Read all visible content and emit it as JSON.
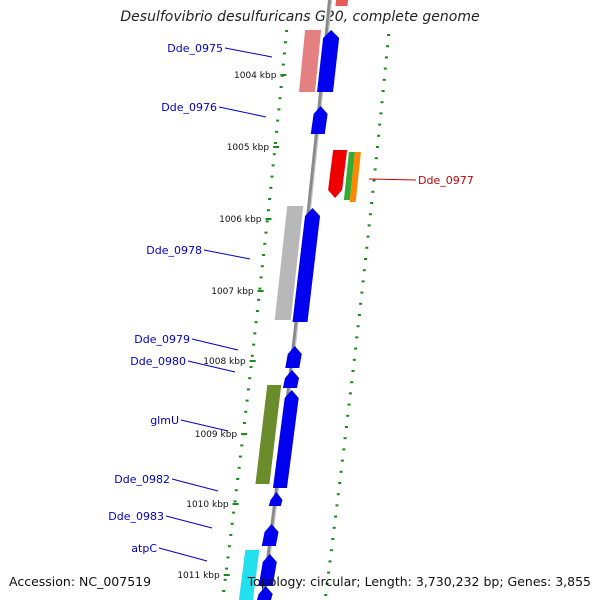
{
  "title": "Desulfovibrio desulfuricans G20, complete genome",
  "footer": {
    "accession": "Accession: NC_007519",
    "summary": "Topology: circular; Length: 3,730,232 bp; Genes: 3,855"
  },
  "colors": {
    "backbone": "#8a8a8a",
    "tick": "#1a8a1a",
    "gene_forward": "#0000ee",
    "label_forward": "#0000cc",
    "label_reverse": "#cc0000"
  },
  "kbp_ticks": [
    "1004 kbp",
    "1005 kbp",
    "1006 kbp",
    "1007 kbp",
    "1008 kbp",
    "1009 kbp",
    "1010 kbp",
    "1011 kbp"
  ],
  "genes": [
    {
      "name": "Dde_0975",
      "strand": "+"
    },
    {
      "name": "Dde_0976",
      "strand": "+"
    },
    {
      "name": "Dde_0977",
      "strand": "-"
    },
    {
      "name": "Dde_0978",
      "strand": "+"
    },
    {
      "name": "Dde_0979",
      "strand": "+"
    },
    {
      "name": "Dde_0980",
      "strand": "+"
    },
    {
      "name": "glmU",
      "strand": "+"
    },
    {
      "name": "Dde_0982",
      "strand": "+"
    },
    {
      "name": "Dde_0983",
      "strand": "+"
    },
    {
      "name": "atpC",
      "strand": "+"
    }
  ]
}
